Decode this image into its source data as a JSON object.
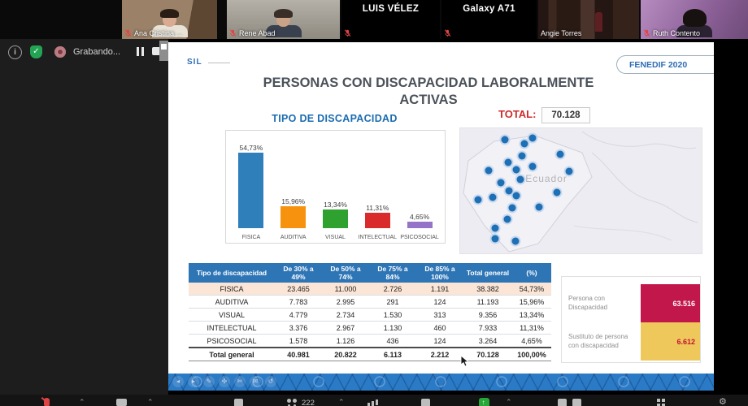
{
  "top_bar": {
    "participants": [
      {
        "name": "Ana Cristina ...",
        "muted": true,
        "video_on": true
      },
      {
        "name": "Rene Abad",
        "muted": true,
        "video_on": true
      },
      {
        "name": "LUIS VÉLEZ",
        "muted": true,
        "video_on": false
      },
      {
        "name": "Galaxy A71",
        "muted": true,
        "video_on": false
      },
      {
        "name": "Angie Torres",
        "muted": false,
        "video_on": true
      },
      {
        "name": "Ruth Contento",
        "muted": true,
        "video_on": true
      }
    ]
  },
  "recording": {
    "label": "Grabando..."
  },
  "slide": {
    "logo": "SIL",
    "badge": "FENEDIF 2020",
    "title_line1": "PERSONAS CON DISCAPACIDAD LABORALMENTE",
    "title_line2": "ACTIVAS",
    "chart_title": "TIPO DE DISCAPACIDAD",
    "total_label": "TOTAL:",
    "total_value": "70.128"
  },
  "chart_data": [
    {
      "type": "bar",
      "title": "TIPO DE DISCAPACIDAD",
      "categories": [
        "FISICA",
        "AUDITIVA",
        "VISUAL",
        "INTELECTUAL",
        "PSICOSOCIAL"
      ],
      "values": [
        54.73,
        15.96,
        13.34,
        11.31,
        4.65
      ],
      "value_labels": [
        "54,73%",
        "15,96%",
        "13,34%",
        "11,31%",
        "4,65%"
      ],
      "colors": [
        "#2E7FBA",
        "#F6920E",
        "#2FA12F",
        "#D92B2B",
        "#9573C8"
      ],
      "xlabel": "",
      "ylabel": "",
      "ylim": [
        0,
        60
      ],
      "grid": false,
      "legend": "none"
    },
    {
      "type": "bar",
      "title": "",
      "categories": [
        "Persona con Discapacidad",
        "Sustituto de persona con discapacidad"
      ],
      "values": [
        63516,
        6612
      ],
      "value_labels": [
        "63.516",
        "6.612"
      ],
      "colors": [
        "#C2174B",
        "#EFC85C"
      ],
      "orientation": "horizontal",
      "legend": "none"
    }
  ],
  "map": {
    "label": "Ecuador",
    "dot_color": "#1F6FB5",
    "dots": [
      [
        18.5,
        9
      ],
      [
        30,
        8
      ],
      [
        26.6,
        12.5
      ],
      [
        25.6,
        22
      ],
      [
        41.4,
        21
      ],
      [
        19.9,
        27.5
      ],
      [
        23.2,
        33.3
      ],
      [
        30,
        30.7
      ],
      [
        45.1,
        34.6
      ],
      [
        11.8,
        34
      ],
      [
        16.8,
        43.8
      ],
      [
        24.9,
        41.2
      ],
      [
        20.2,
        49.7
      ],
      [
        23.2,
        54.2
      ],
      [
        40.1,
        51.6
      ],
      [
        7.4,
        56.9
      ],
      [
        13.5,
        54.9
      ],
      [
        21.5,
        63.4
      ],
      [
        32.7,
        62.7
      ],
      [
        19.5,
        72.5
      ],
      [
        14.5,
        79.7
      ],
      [
        14.5,
        88.2
      ],
      [
        22.9,
        90.2
      ]
    ]
  },
  "table": {
    "headers": [
      "Tipo de discapacidad",
      "De 30% a 49%",
      "De 50% a 74%",
      "De 75% a 84%",
      "De 85% a 100%",
      "Total general",
      "(%)"
    ],
    "rows": [
      [
        "FISICA",
        "23.465",
        "11.000",
        "2.726",
        "1.191",
        "38.382",
        "54,73%"
      ],
      [
        "AUDITIVA",
        "7.783",
        "2.995",
        "291",
        "124",
        "11.193",
        "15,96%"
      ],
      [
        "VISUAL",
        "4.779",
        "2.734",
        "1.530",
        "313",
        "9.356",
        "13,34%"
      ],
      [
        "INTELECTUAL",
        "3.376",
        "2.967",
        "1.130",
        "460",
        "7.933",
        "11,31%"
      ],
      [
        "PSICOSOCIAL",
        "1.578",
        "1.126",
        "436",
        "124",
        "3.264",
        "4,65%"
      ]
    ],
    "total_row": [
      "Total general",
      "40.981",
      "20.822",
      "6.113",
      "2.212",
      "70.128",
      "100,00%"
    ],
    "header_color": "#2E75B6",
    "highlight_row_color": "#FBE5D6"
  },
  "side_chart": {
    "items": [
      {
        "label": "Persona con Discapacidad",
        "value": "63.516",
        "color": "#C2174B"
      },
      {
        "label": "Sustituto de persona con discapacidad",
        "value": "6.612",
        "color": "#EFC85C"
      }
    ]
  },
  "taskbar": {
    "participant_count": "222"
  }
}
